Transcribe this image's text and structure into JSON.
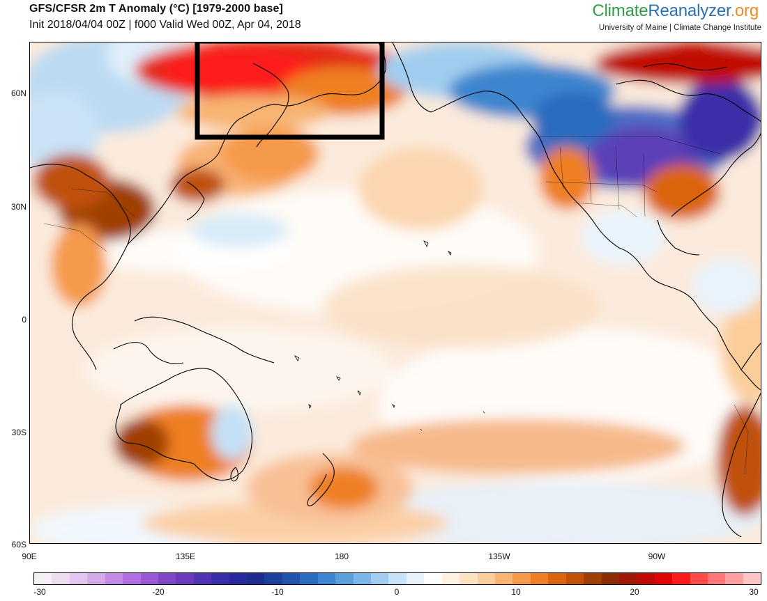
{
  "header": {
    "title": "GFS/CFSR 2m T Anomaly (°C) [1979-2000 base]",
    "subtitle": "Init 2018/04/04 00Z | f000 Valid Wed 00Z, Apr 04, 2018"
  },
  "brand": {
    "part1": "Climate",
    "part2": "Reanalyzer",
    "part3": ".org",
    "subtitle": "University of Maine | Climate Change Institute"
  },
  "map": {
    "lat_labels": [
      "60N",
      "30N",
      "0",
      "30S",
      "60S"
    ],
    "lon_labels": [
      "90E",
      "135E",
      "180",
      "135W",
      "90W"
    ],
    "highlight": "box around eastern Siberia"
  },
  "colorbar": {
    "tick_labels": [
      "-30",
      "-20",
      "-10",
      "0",
      "10",
      "20",
      "30"
    ],
    "colors": [
      "#f5eef5",
      "#ecdcf0",
      "#e2c6ef",
      "#d4aaeb",
      "#c48be6",
      "#b06ee0",
      "#9a58d6",
      "#8048c8",
      "#6a3cbc",
      "#4f33b2",
      "#3a2ea8",
      "#28299c",
      "#1e2c8e",
      "#1d3f9e",
      "#2253ae",
      "#2b6cc0",
      "#3d86cf",
      "#5a9fdc",
      "#7bb6e6",
      "#a0cdef",
      "#c6e2f7",
      "#e6f2fc",
      "#ffffff",
      "#fff2e0",
      "#fde2c2",
      "#fbcd9b",
      "#f8b472",
      "#f59a4b",
      "#ee7f24",
      "#db650f",
      "#c05108",
      "#a03f05",
      "#8a2c04",
      "#a01806",
      "#c00a06",
      "#df0505",
      "#ff1a1a",
      "#ff4a4a",
      "#ff7676",
      "#ff9f9f",
      "#ffc4c4"
    ]
  }
}
